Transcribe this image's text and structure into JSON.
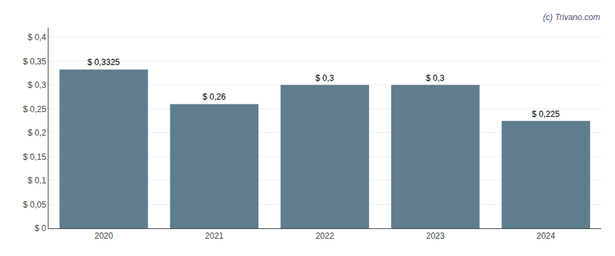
{
  "chart_data": {
    "type": "bar",
    "categories": [
      "2020",
      "2021",
      "2022",
      "2023",
      "2024"
    ],
    "values": [
      0.3325,
      0.26,
      0.3,
      0.3,
      0.225
    ],
    "value_labels": [
      "$ 0,3325",
      "$ 0,26",
      "$ 0,3",
      "$ 0,3",
      "$ 0,225"
    ],
    "data_labels": true,
    "color": "#5f7d8c",
    "ylim": [
      0,
      0.42
    ],
    "yticks": [
      {
        "value": 0,
        "label": "$ 0"
      },
      {
        "value": 0.05,
        "label": "$ 0,05"
      },
      {
        "value": 0.1,
        "label": "$ 0,1"
      },
      {
        "value": 0.15,
        "label": "$ 0,15"
      },
      {
        "value": 0.2,
        "label": "$ 0,2"
      },
      {
        "value": 0.25,
        "label": "$ 0,25"
      },
      {
        "value": 0.3,
        "label": "$ 0,3"
      },
      {
        "value": 0.35,
        "label": "$ 0,35"
      },
      {
        "value": 0.4,
        "label": "$ 0,4"
      }
    ],
    "grid": true,
    "annotations": [
      "(c) Trivano.com"
    ]
  }
}
